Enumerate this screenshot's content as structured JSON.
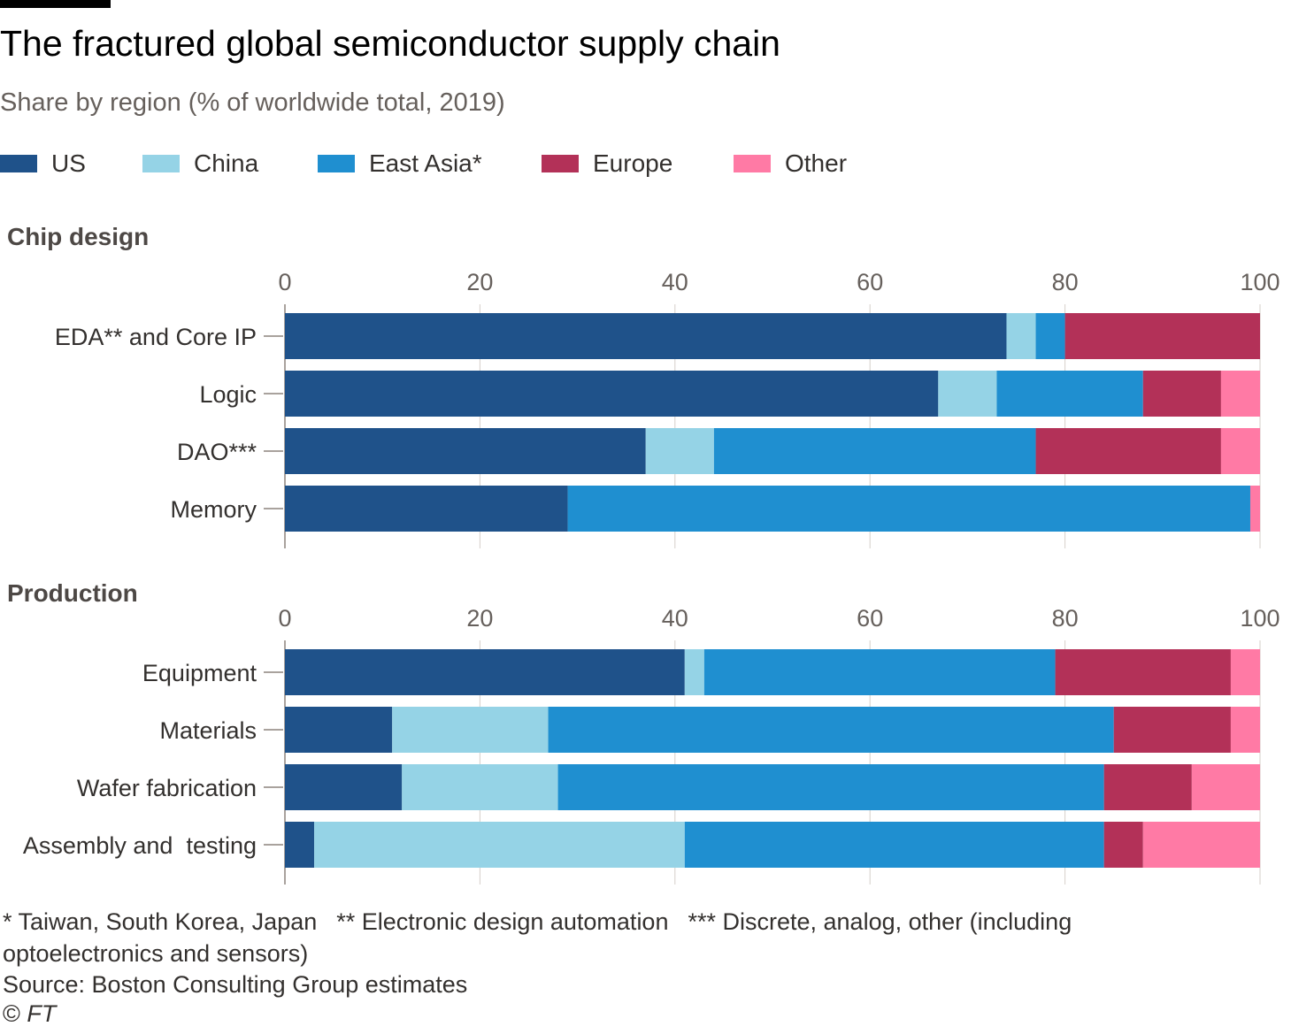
{
  "title": "The fractured global semiconductor supply chain",
  "subtitle": "Share by region (% of worldwide total, 2019)",
  "legend": [
    {
      "label": "US",
      "color": "#1f528a"
    },
    {
      "label": "China",
      "color": "#95d3e6"
    },
    {
      "label": "East Asia*",
      "color": "#1f8fd0"
    },
    {
      "label": "Europe",
      "color": "#b33158"
    },
    {
      "label": "Other",
      "color": "#ff7aa5"
    }
  ],
  "footnotes": {
    "east_asia": "* Taiwan, South Korea, Japan",
    "eda": "** Electronic design automation",
    "dao_line1": "*** Discrete, analog, other (including",
    "dao_line2": "optoelectronics and sensors)"
  },
  "source": "Source: Boston Consulting Group estimates",
  "copyright_symbol": "©",
  "copyright_brand": "FT",
  "chart_data": [
    {
      "type": "bar",
      "stacked": true,
      "orientation": "horizontal",
      "title": "Chip design",
      "xlim": [
        0,
        100
      ],
      "xticks": [
        "0",
        "20",
        "40",
        "60",
        "80",
        "100"
      ],
      "categories": [
        "EDA** and Core IP",
        "Logic",
        "DAO***",
        "Memory"
      ],
      "series": [
        {
          "name": "US",
          "values": [
            74,
            67,
            37,
            29
          ]
        },
        {
          "name": "China",
          "values": [
            3,
            6,
            7,
            0
          ]
        },
        {
          "name": "East Asia*",
          "values": [
            3,
            15,
            33,
            70
          ]
        },
        {
          "name": "Europe",
          "values": [
            20,
            8,
            19,
            0
          ]
        },
        {
          "name": "Other",
          "values": [
            0,
            4,
            4,
            1
          ]
        }
      ]
    },
    {
      "type": "bar",
      "stacked": true,
      "orientation": "horizontal",
      "title": "Production",
      "xlim": [
        0,
        100
      ],
      "xticks": [
        "0",
        "20",
        "40",
        "60",
        "80",
        "100"
      ],
      "categories": [
        "Equipment",
        "Materials",
        "Wafer fabrication",
        "Assembly and  testing"
      ],
      "series": [
        {
          "name": "US",
          "values": [
            41,
            11,
            12,
            3
          ]
        },
        {
          "name": "China",
          "values": [
            2,
            16,
            16,
            38
          ]
        },
        {
          "name": "East Asia*",
          "values": [
            36,
            58,
            56,
            43
          ]
        },
        {
          "name": "Europe",
          "values": [
            18,
            12,
            9,
            4
          ]
        },
        {
          "name": "Other",
          "values": [
            3,
            3,
            7,
            12
          ]
        }
      ]
    }
  ]
}
